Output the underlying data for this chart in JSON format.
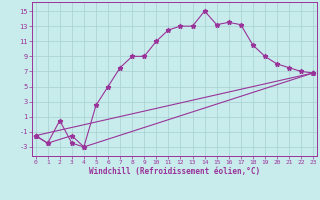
{
  "xlabel": "Windchill (Refroidissement éolien,°C)",
  "x_ticks": [
    0,
    1,
    2,
    3,
    4,
    5,
    6,
    7,
    8,
    9,
    10,
    11,
    12,
    13,
    14,
    15,
    16,
    17,
    18,
    19,
    20,
    21,
    22,
    23
  ],
  "y_ticks": [
    -3,
    -1,
    1,
    3,
    5,
    7,
    9,
    11,
    13,
    15
  ],
  "xlim": [
    -0.3,
    23.3
  ],
  "ylim": [
    -4.2,
    16.2
  ],
  "background_color": "#c8ecec",
  "line_color": "#993399",
  "grid_color": "#a8d0d0",
  "line1_x": [
    0,
    1,
    2,
    3,
    4,
    5,
    6,
    7,
    8,
    9,
    10,
    11,
    12,
    13,
    14,
    15,
    16,
    17,
    18,
    19,
    20,
    21,
    22,
    23
  ],
  "line1_y": [
    -1.5,
    -2.5,
    0.5,
    -2.5,
    -3.0,
    2.5,
    5.0,
    7.5,
    9.0,
    9.0,
    11.0,
    12.5,
    13.0,
    13.0,
    15.0,
    13.2,
    13.5,
    13.2,
    10.5,
    9.0,
    8.0,
    7.5,
    7.0,
    6.8
  ],
  "line2_x": [
    0,
    23
  ],
  "line2_y": [
    -1.5,
    6.8
  ],
  "line3_x": [
    0,
    1,
    3,
    4,
    23
  ],
  "line3_y": [
    -1.5,
    -2.5,
    -1.5,
    -3.0,
    6.8
  ]
}
